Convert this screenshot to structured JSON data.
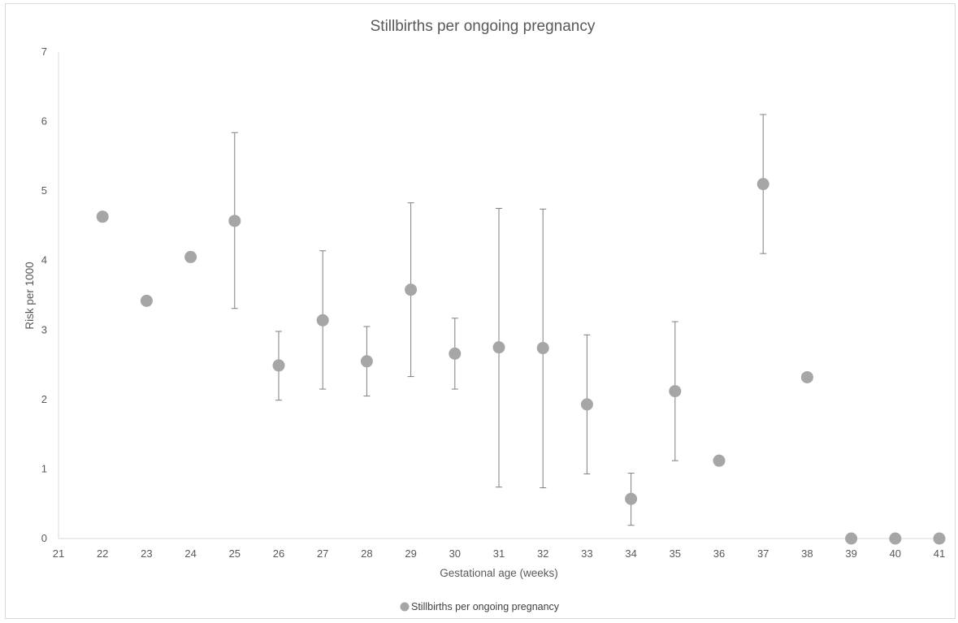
{
  "chart_data": {
    "type": "scatter",
    "title": "Stillbirths per ongoing pregnancy",
    "xlabel": "Gestational age (weeks)",
    "ylabel": "Risk per 1000",
    "xlim": [
      21,
      41
    ],
    "ylim": [
      0,
      7
    ],
    "x_ticks": [
      21,
      22,
      23,
      24,
      25,
      26,
      27,
      28,
      29,
      30,
      31,
      32,
      33,
      34,
      35,
      36,
      37,
      38,
      39,
      40,
      41
    ],
    "y_ticks": [
      0,
      1,
      2,
      3,
      4,
      5,
      6,
      7
    ],
    "grid": false,
    "legend_position": "bottom",
    "series": [
      {
        "name": "Stillbirths per ongoing pregnancy",
        "color": "#a6a6a6",
        "marker": "circle",
        "points": [
          {
            "x": 22,
            "y": 4.63
          },
          {
            "x": 23,
            "y": 3.42
          },
          {
            "x": 24,
            "y": 4.05
          },
          {
            "x": 25,
            "y": 4.57,
            "err_low": 3.31,
            "err_high": 5.84
          },
          {
            "x": 26,
            "y": 2.49,
            "err_low": 1.99,
            "err_high": 2.98
          },
          {
            "x": 27,
            "y": 3.14,
            "err_low": 2.15,
            "err_high": 4.14
          },
          {
            "x": 28,
            "y": 2.55,
            "err_low": 2.05,
            "err_high": 3.05
          },
          {
            "x": 29,
            "y": 3.58,
            "err_low": 2.33,
            "err_high": 4.83
          },
          {
            "x": 30,
            "y": 2.66,
            "err_low": 2.15,
            "err_high": 3.17
          },
          {
            "x": 31,
            "y": 2.75,
            "err_low": 0.74,
            "err_high": 4.75
          },
          {
            "x": 32,
            "y": 2.74,
            "err_low": 0.73,
            "err_high": 4.74
          },
          {
            "x": 33,
            "y": 1.93,
            "err_low": 0.93,
            "err_high": 2.93
          },
          {
            "x": 34,
            "y": 0.57,
            "err_low": 0.19,
            "err_high": 0.94
          },
          {
            "x": 35,
            "y": 2.12,
            "err_low": 1.12,
            "err_high": 3.12
          },
          {
            "x": 36,
            "y": 1.12
          },
          {
            "x": 37,
            "y": 5.1,
            "err_low": 4.1,
            "err_high": 6.1
          },
          {
            "x": 38,
            "y": 2.32
          },
          {
            "x": 39,
            "y": 0
          },
          {
            "x": 40,
            "y": 0
          },
          {
            "x": 41,
            "y": 0
          }
        ]
      }
    ]
  },
  "colors": {
    "marker": "#a6a6a6",
    "error_bar": "#7f7f7f",
    "axis_line": "#d9d9d9",
    "text": "#595959"
  }
}
